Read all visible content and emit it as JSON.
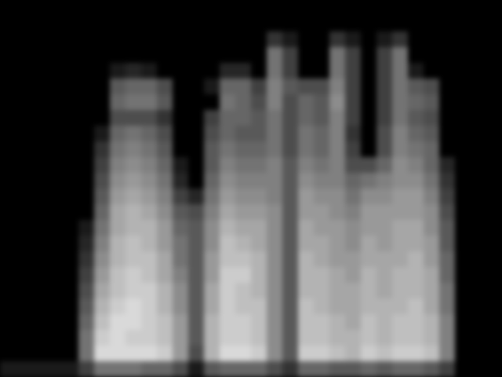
{
  "chart_data": {
    "type": "heatmap",
    "tick_labels": false,
    "zlim": [
      0,
      100
    ],
    "cells": [
      [
        0,
        0,
        0,
        0,
        0,
        0,
        0,
        0,
        0,
        0,
        0,
        0,
        0,
        0,
        0,
        0,
        0,
        0,
        0,
        0,
        0,
        0,
        0,
        0,
        0,
        0,
        0,
        0,
        0,
        0,
        0,
        0
      ],
      [
        0,
        0,
        0,
        0,
        0,
        0,
        0,
        0,
        0,
        0,
        0,
        0,
        0,
        0,
        0,
        0,
        0,
        0,
        0,
        0,
        0,
        0,
        0,
        0,
        0,
        0,
        0,
        0,
        0,
        0,
        0,
        0
      ],
      [
        0,
        0,
        0,
        0,
        0,
        0,
        0,
        0,
        0,
        0,
        0,
        0,
        0,
        0,
        0,
        0,
        0,
        20,
        10,
        0,
        0,
        20,
        10,
        0,
        10,
        20,
        0,
        0,
        0,
        0,
        0,
        0
      ],
      [
        0,
        0,
        0,
        0,
        0,
        0,
        0,
        0,
        0,
        0,
        0,
        0,
        0,
        0,
        0,
        0,
        0,
        45,
        25,
        0,
        0,
        45,
        25,
        0,
        25,
        45,
        0,
        0,
        0,
        0,
        0,
        0
      ],
      [
        0,
        0,
        0,
        0,
        0,
        0,
        0,
        10,
        15,
        10,
        0,
        0,
        0,
        0,
        15,
        15,
        0,
        45,
        25,
        0,
        0,
        45,
        25,
        0,
        25,
        45,
        10,
        0,
        0,
        0,
        0,
        0
      ],
      [
        0,
        0,
        0,
        0,
        0,
        0,
        0,
        35,
        40,
        40,
        30,
        0,
        0,
        10,
        40,
        40,
        25,
        50,
        35,
        30,
        30,
        50,
        25,
        0,
        25,
        45,
        35,
        30,
        0,
        0,
        0,
        0
      ],
      [
        0,
        0,
        0,
        0,
        0,
        0,
        0,
        40,
        45,
        45,
        35,
        0,
        0,
        0,
        45,
        40,
        30,
        50,
        30,
        40,
        35,
        55,
        25,
        0,
        25,
        45,
        40,
        35,
        0,
        0,
        0,
        0
      ],
      [
        0,
        0,
        0,
        0,
        0,
        0,
        0,
        30,
        30,
        30,
        20,
        0,
        0,
        25,
        40,
        40,
        35,
        45,
        30,
        40,
        35,
        50,
        25,
        0,
        25,
        45,
        35,
        30,
        0,
        0,
        0,
        0
      ],
      [
        0,
        0,
        0,
        0,
        0,
        0,
        10,
        40,
        45,
        40,
        30,
        0,
        0,
        30,
        40,
        35,
        35,
        45,
        30,
        45,
        40,
        50,
        20,
        0,
        30,
        50,
        40,
        35,
        0,
        0,
        0,
        0
      ],
      [
        0,
        0,
        0,
        0,
        0,
        0,
        20,
        45,
        50,
        45,
        35,
        0,
        0,
        35,
        45,
        40,
        40,
        45,
        30,
        45,
        40,
        50,
        25,
        0,
        30,
        50,
        45,
        40,
        0,
        0,
        0,
        0
      ],
      [
        0,
        0,
        0,
        0,
        0,
        0,
        25,
        50,
        55,
        50,
        40,
        10,
        0,
        35,
        50,
        45,
        45,
        50,
        35,
        50,
        45,
        50,
        30,
        30,
        40,
        55,
        50,
        40,
        15,
        0,
        0,
        0
      ],
      [
        0,
        0,
        0,
        0,
        0,
        0,
        30,
        55,
        60,
        55,
        45,
        15,
        0,
        40,
        55,
        50,
        50,
        50,
        35,
        55,
        50,
        50,
        40,
        45,
        50,
        55,
        55,
        45,
        20,
        0,
        0,
        0
      ],
      [
        0,
        0,
        0,
        0,
        0,
        0,
        35,
        60,
        65,
        60,
        50,
        25,
        15,
        45,
        60,
        55,
        55,
        50,
        35,
        60,
        55,
        55,
        45,
        55,
        55,
        60,
        60,
        50,
        25,
        0,
        0,
        0
      ],
      [
        0,
        0,
        0,
        0,
        0,
        0,
        40,
        65,
        70,
        65,
        55,
        35,
        30,
        50,
        65,
        60,
        60,
        55,
        35,
        60,
        60,
        55,
        50,
        60,
        60,
        60,
        60,
        55,
        30,
        0,
        0,
        0
      ],
      [
        0,
        0,
        0,
        0,
        0,
        10,
        45,
        65,
        70,
        70,
        60,
        40,
        35,
        55,
        70,
        65,
        65,
        55,
        35,
        65,
        60,
        60,
        55,
        60,
        60,
        65,
        65,
        55,
        35,
        0,
        0,
        0
      ],
      [
        0,
        0,
        0,
        0,
        0,
        15,
        50,
        70,
        75,
        70,
        60,
        45,
        35,
        55,
        75,
        70,
        65,
        55,
        35,
        65,
        65,
        60,
        55,
        65,
        60,
        65,
        65,
        60,
        35,
        0,
        0,
        0
      ],
      [
        0,
        0,
        0,
        0,
        0,
        20,
        55,
        70,
        75,
        75,
        65,
        45,
        35,
        60,
        75,
        75,
        70,
        55,
        35,
        70,
        65,
        60,
        60,
        65,
        65,
        65,
        70,
        60,
        40,
        0,
        0,
        0
      ],
      [
        0,
        0,
        0,
        0,
        0,
        25,
        60,
        75,
        80,
        75,
        65,
        50,
        35,
        60,
        80,
        80,
        70,
        55,
        35,
        70,
        70,
        65,
        60,
        70,
        65,
        70,
        70,
        65,
        40,
        0,
        0,
        0
      ],
      [
        0,
        0,
        0,
        0,
        0,
        30,
        65,
        75,
        80,
        80,
        70,
        55,
        35,
        65,
        80,
        75,
        70,
        55,
        35,
        70,
        70,
        65,
        65,
        70,
        65,
        70,
        70,
        65,
        45,
        0,
        0,
        0
      ],
      [
        0,
        0,
        0,
        0,
        0,
        35,
        70,
        80,
        85,
        80,
        70,
        55,
        35,
        65,
        80,
        75,
        75,
        55,
        35,
        75,
        70,
        65,
        65,
        70,
        70,
        70,
        75,
        65,
        45,
        0,
        0,
        0
      ],
      [
        0,
        0,
        0,
        0,
        0,
        40,
        75,
        85,
        85,
        80,
        75,
        60,
        35,
        70,
        80,
        80,
        75,
        55,
        35,
        75,
        75,
        70,
        65,
        75,
        70,
        75,
        75,
        70,
        50,
        0,
        0,
        0
      ],
      [
        0,
        0,
        0,
        0,
        0,
        45,
        80,
        85,
        80,
        80,
        75,
        60,
        35,
        70,
        80,
        80,
        75,
        55,
        35,
        75,
        75,
        70,
        70,
        75,
        70,
        75,
        75,
        70,
        50,
        0,
        0,
        0
      ],
      [
        0,
        0,
        0,
        0,
        0,
        45,
        85,
        85,
        85,
        85,
        80,
        60,
        30,
        70,
        85,
        85,
        80,
        55,
        35,
        80,
        80,
        75,
        70,
        80,
        75,
        80,
        80,
        75,
        50,
        0,
        0,
        0
      ],
      [
        10,
        10,
        10,
        10,
        10,
        25,
        45,
        45,
        45,
        40,
        40,
        30,
        10,
        35,
        40,
        40,
        40,
        30,
        20,
        40,
        40,
        35,
        35,
        40,
        35,
        40,
        40,
        35,
        25,
        0,
        0,
        0
      ]
    ]
  }
}
